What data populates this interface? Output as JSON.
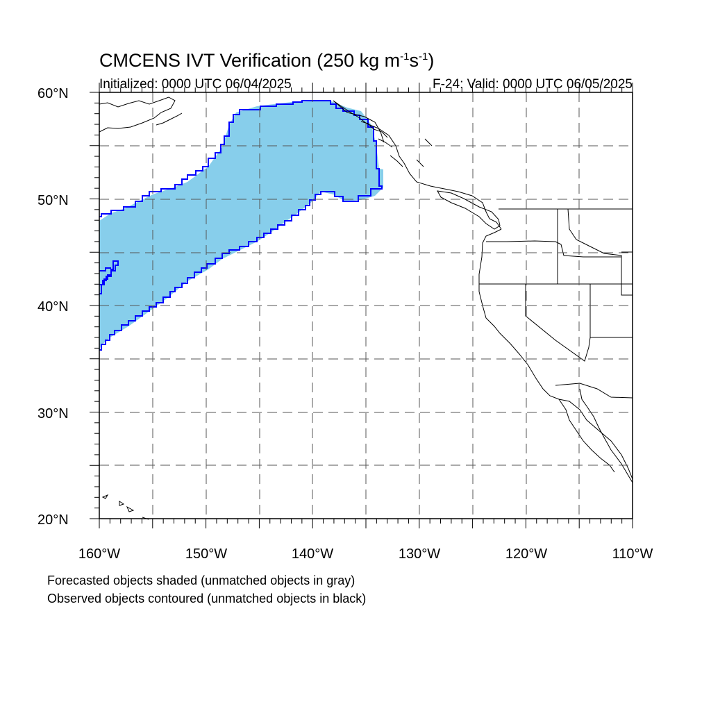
{
  "title": {
    "main": "CMCENS IVT Verification (250 kg m",
    "sup1": "-1",
    "mid": "s",
    "sup2": "-1",
    "end": ")"
  },
  "subtitle_left": "Initialized: 0000 UTC 06/04/2025",
  "subtitle_right": "F-24: Valid: 0000 UTC 06/05/2025",
  "notes": [
    "Forecasted objects shaded (unmatched objects in gray)",
    "Observed objects contoured (unmatched objects in black)"
  ],
  "map": {
    "lon_range": [
      -160,
      -110
    ],
    "lat_range": [
      20,
      60
    ],
    "lat_labels": [
      "20°N",
      "30°N",
      "40°N",
      "50°N",
      "60°N"
    ],
    "lon_labels": [
      "160°W",
      "150°W",
      "140°W",
      "130°W",
      "120°W",
      "110°W"
    ],
    "colors": {
      "forecast_fill": "#87ceeb",
      "observed_contour": "#0000ff",
      "coastline": "#000000",
      "grid": "#555555"
    }
  }
}
